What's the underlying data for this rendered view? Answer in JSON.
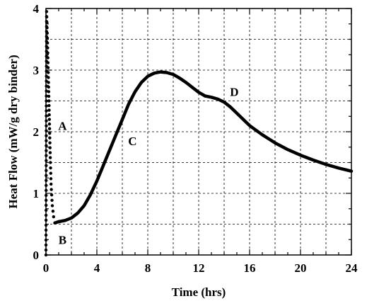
{
  "chart_data": {
    "type": "line",
    "title": "",
    "xlabel": "Time (hrs)",
    "ylabel": "Heat Flow (mW/g dry binder)",
    "xlim": [
      0,
      24
    ],
    "ylim": [
      0,
      4
    ],
    "xticks": [
      0,
      4,
      8,
      12,
      16,
      20,
      24
    ],
    "yticks": [
      0,
      1,
      2,
      3,
      4
    ],
    "grid": true,
    "legend": "none",
    "series": [
      {
        "style": "dotted",
        "x": [
          0.0,
          0.05,
          0.1,
          0.15,
          0.2,
          0.25,
          0.3,
          0.35,
          0.4,
          0.5,
          0.6,
          0.7
        ],
        "y": [
          0.0,
          3.95,
          3.6,
          3.2,
          2.8,
          2.35,
          1.9,
          1.5,
          1.15,
          0.8,
          0.62,
          0.52
        ]
      },
      {
        "style": "solid",
        "x": [
          0.7,
          1.0,
          1.5,
          2.0,
          2.5,
          3.0,
          3.5,
          4.0,
          4.5,
          5.0,
          5.5,
          6.0,
          6.5,
          7.0,
          7.5,
          8.0,
          8.5,
          9.0,
          9.5,
          10.0,
          10.5,
          11.0,
          11.5,
          12.0,
          12.5,
          13.0,
          13.5,
          14.0,
          14.5,
          15.0,
          15.5,
          16.0,
          17.0,
          18.0,
          19.0,
          20.0,
          21.0,
          22.0,
          23.0,
          24.0
        ],
        "y": [
          0.52,
          0.54,
          0.56,
          0.6,
          0.68,
          0.8,
          0.98,
          1.2,
          1.45,
          1.7,
          1.95,
          2.2,
          2.45,
          2.65,
          2.8,
          2.9,
          2.95,
          2.97,
          2.96,
          2.93,
          2.87,
          2.8,
          2.72,
          2.64,
          2.58,
          2.56,
          2.53,
          2.48,
          2.4,
          2.3,
          2.2,
          2.1,
          1.95,
          1.82,
          1.71,
          1.62,
          1.54,
          1.47,
          1.41,
          1.36
        ]
      }
    ],
    "annotations": [
      {
        "text": "A",
        "x": 1.3,
        "y": 2.1
      },
      {
        "text": "B",
        "x": 1.3,
        "y": 0.25
      },
      {
        "text": "C",
        "x": 6.8,
        "y": 1.85
      },
      {
        "text": "D",
        "x": 14.8,
        "y": 2.65
      }
    ]
  }
}
